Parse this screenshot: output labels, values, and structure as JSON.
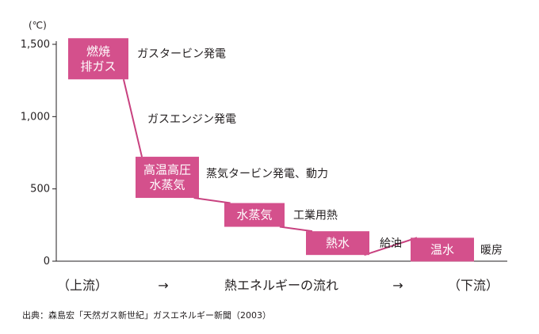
{
  "chart_data": {
    "type": "line",
    "unit_label": "(℃)",
    "y_ticks": [
      "1,500",
      "1,000",
      "500",
      "0"
    ],
    "y_tick_values": [
      1500,
      1000,
      500,
      0
    ],
    "ylim": [
      0,
      1500
    ],
    "stages": [
      {
        "label_lines": [
          "燃焼",
          "排ガス"
        ],
        "temp": 1400,
        "annotation": "ガスタービン発電"
      },
      {
        "label_lines": [
          "高温高圧",
          "水蒸気"
        ],
        "temp": 580,
        "annotation": "蒸気タービン発電、動力"
      },
      {
        "label_lines": [
          "水蒸気"
        ],
        "temp": 320,
        "annotation": "工業用熱"
      },
      {
        "label_lines": [
          "熱水"
        ],
        "temp": 125,
        "annotation": "給油"
      },
      {
        "label_lines": [
          "温水"
        ],
        "temp": 80,
        "annotation": "暖房"
      }
    ],
    "mid_annotation": "ガスエンジン発電",
    "x_axis_labels": {
      "left": "（上流）",
      "arrow_left": "→",
      "center": "熱エネルギーの流れ",
      "arrow_right": "→",
      "right": "（下流）"
    },
    "source": "出典：森島宏「天然ガス新世紀」ガスエネルギー新聞（2003）",
    "colors": {
      "box": "#d4508c",
      "line": "#c8417f",
      "axis": "#231f20"
    }
  }
}
